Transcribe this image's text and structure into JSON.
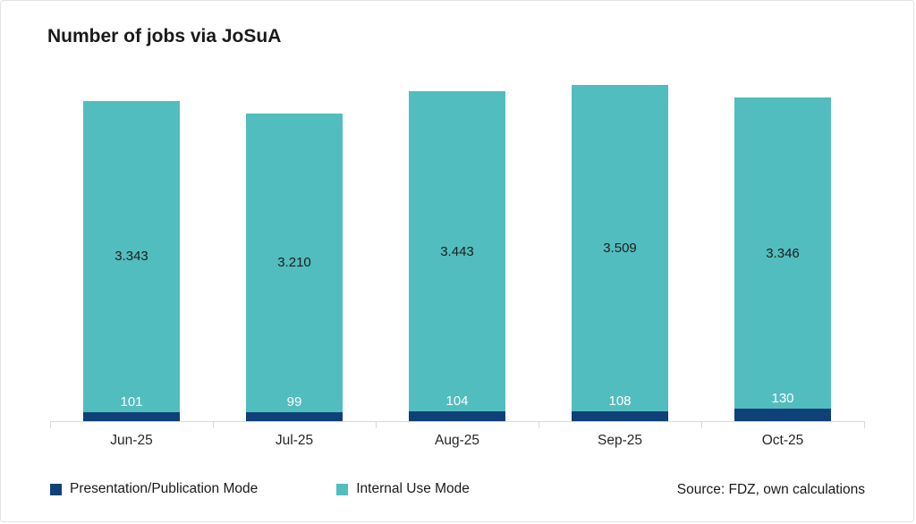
{
  "title": "Number of jobs via JoSuA",
  "source": "Source: FDZ, own calculations",
  "colors": {
    "presentation": "#0e4178",
    "internal": "#52bdbf",
    "axis_line": "#d9d9d9",
    "text": "#1a1a1a",
    "value_label_dark": "#1d1d1d",
    "value_label_light": "#ffffff"
  },
  "legend": [
    {
      "label": "Presentation/Publication Mode",
      "color": "#0e4178"
    },
    {
      "label": "Internal Use Mode",
      "color": "#52bdbf"
    }
  ],
  "chart_data": {
    "type": "bar",
    "stacked": true,
    "title": "Number of jobs via JoSuA",
    "categories": [
      "Jun-25",
      "Jul-25",
      "Aug-25",
      "Sep-25",
      "Oct-25"
    ],
    "series": [
      {
        "name": "Presentation/Publication Mode",
        "color": "#0e4178",
        "values": [
          101,
          99,
          104,
          108,
          130
        ],
        "labels": [
          "101",
          "99",
          "104",
          "108",
          "130"
        ],
        "label_color": "#ffffff"
      },
      {
        "name": "Internal Use Mode",
        "color": "#52bdbf",
        "values": [
          3343,
          3210,
          3443,
          3509,
          3346
        ],
        "labels": [
          "3.343",
          "3.210",
          "3.443",
          "3.509",
          "3.346"
        ],
        "label_color": "#1d1d1d"
      }
    ],
    "xlabel": "",
    "ylabel": "",
    "ylim": [
      0,
      3700
    ],
    "grid": false,
    "y_axis_visible": false,
    "legend_position": "bottom"
  }
}
